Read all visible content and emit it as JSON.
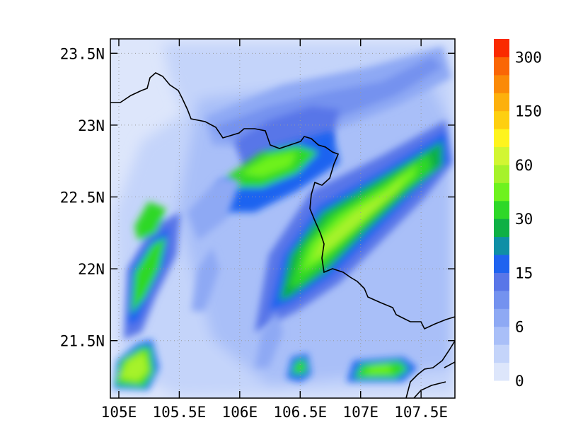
{
  "map": {
    "x_ticks": [
      "105E",
      "105.5E",
      "106E",
      "106.5E",
      "107E",
      "107.5E"
    ],
    "y_ticks": [
      "23.5N",
      "23N",
      "22.5N",
      "22N",
      "21.5N"
    ],
    "lon_range": [
      104.93,
      107.78
    ],
    "lat_range": [
      21.1,
      23.6
    ],
    "lon_tick_values": [
      105,
      105.5,
      106,
      106.5,
      107,
      107.5
    ],
    "lat_tick_values": [
      23.5,
      23,
      22.5,
      22,
      21.5
    ],
    "gridlines": "dotted"
  },
  "colorbar": {
    "labels": [
      "0",
      "6",
      "15",
      "30",
      "60",
      "150",
      "300"
    ],
    "colors": [
      "#dde6fb",
      "#c4d4fa",
      "#a9bff8",
      "#8ea9f4",
      "#7492ef",
      "#5976e8",
      "#1f63f0",
      "#0f8fa6",
      "#0fb045",
      "#2ed828",
      "#6ef21e",
      "#a6f22a",
      "#d2f632",
      "#fef41e",
      "#fecf10",
      "#fdb00c",
      "#fb8a07",
      "#fa6605",
      "#fa2a00"
    ]
  }
}
